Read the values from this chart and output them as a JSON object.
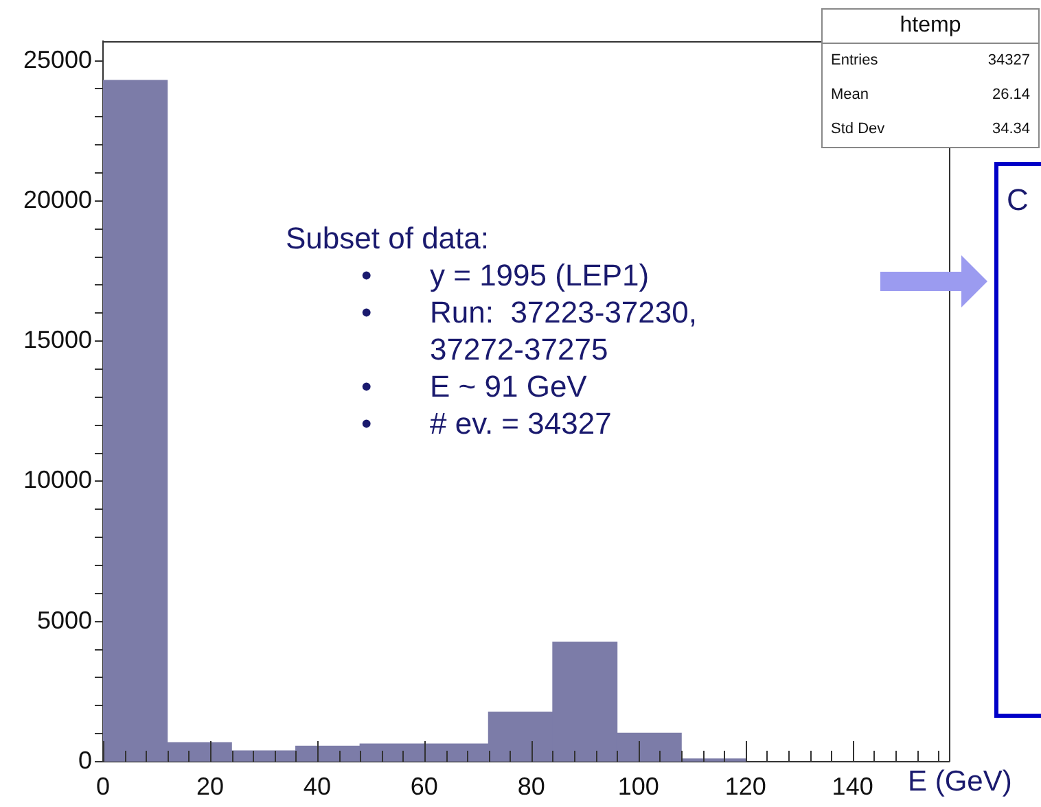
{
  "chart_data": {
    "type": "histogram",
    "xlabel": "E (GeV)",
    "bins": [
      0,
      12,
      24,
      36,
      48,
      60,
      72,
      84,
      96,
      108,
      120
    ],
    "values": [
      24300,
      680,
      390,
      550,
      630,
      630,
      1770,
      4270,
      1020,
      100
    ],
    "color": "#7c7ca8",
    "xlim": [
      0,
      158
    ],
    "xticks": [
      0,
      {
        "value": 4,
        "label": null
      },
      {
        "value": 8,
        "label": null
      },
      {
        "value": 12,
        "label": null
      },
      {
        "value": 16,
        "label": null
      },
      20,
      {
        "value": 24,
        "label": null
      },
      {
        "value": 28,
        "label": null
      },
      {
        "value": 32,
        "label": null
      },
      {
        "value": 36,
        "label": null
      },
      40,
      {
        "value": 44,
        "label": null
      },
      {
        "value": 48,
        "label": null
      },
      {
        "value": 52,
        "label": null
      },
      {
        "value": 56,
        "label": null
      },
      60,
      {
        "value": 64,
        "label": null
      },
      {
        "value": 68,
        "label": null
      },
      {
        "value": 72,
        "label": null
      },
      {
        "value": 76,
        "label": null
      },
      80,
      {
        "value": 84,
        "label": null
      },
      {
        "value": 88,
        "label": null
      },
      {
        "value": 92,
        "label": null
      },
      {
        "value": 96,
        "label": null
      },
      100,
      {
        "value": 104,
        "label": null
      },
      {
        "value": 108,
        "label": null
      },
      {
        "value": 112,
        "label": null
      },
      {
        "value": 116,
        "label": null
      },
      120,
      {
        "value": 124,
        "label": null
      },
      {
        "value": 128,
        "label": null
      },
      {
        "value": 132,
        "label": null
      },
      {
        "value": 136,
        "label": null
      },
      140,
      {
        "value": 144,
        "label": null
      },
      {
        "value": 148,
        "label": null
      },
      {
        "value": 152,
        "label": null
      },
      {
        "value": 156,
        "label": null
      }
    ],
    "ylim": [
      0,
      25700
    ],
    "yticks": [
      0,
      {
        "value": 1000,
        "label": null
      },
      {
        "value": 2000,
        "label": null
      },
      {
        "value": 3000,
        "label": null
      },
      {
        "value": 4000,
        "label": null
      },
      5000,
      {
        "value": 6000,
        "label": null
      },
      {
        "value": 7000,
        "label": null
      },
      {
        "value": 8000,
        "label": null
      },
      {
        "value": 9000,
        "label": null
      },
      10000,
      {
        "value": 11000,
        "label": null
      },
      {
        "value": 12000,
        "label": null
      },
      {
        "value": 13000,
        "label": null
      },
      {
        "value": 14000,
        "label": null
      },
      15000,
      {
        "value": 16000,
        "label": null
      },
      {
        "value": 17000,
        "label": null
      },
      {
        "value": 18000,
        "label": null
      },
      {
        "value": 19000,
        "label": null
      },
      20000,
      {
        "value": 21000,
        "label": null
      },
      {
        "value": 22000,
        "label": null
      },
      {
        "value": 23000,
        "label": null
      },
      {
        "value": 24000,
        "label": null
      },
      25000
    ],
    "grid": false,
    "annotations": [
      "Subset of data:",
      "•",
      "y = 1995 (LEP1)",
      "•",
      "Run:  37223-37230, 37272-37275",
      "•",
      "E ~ 91 GeV",
      "•",
      "# ev. = 34327",
      "htemp",
      "Entries",
      "34327",
      "Mean",
      "26.14",
      "Std Dev",
      "34.34",
      "C"
    ]
  }
}
